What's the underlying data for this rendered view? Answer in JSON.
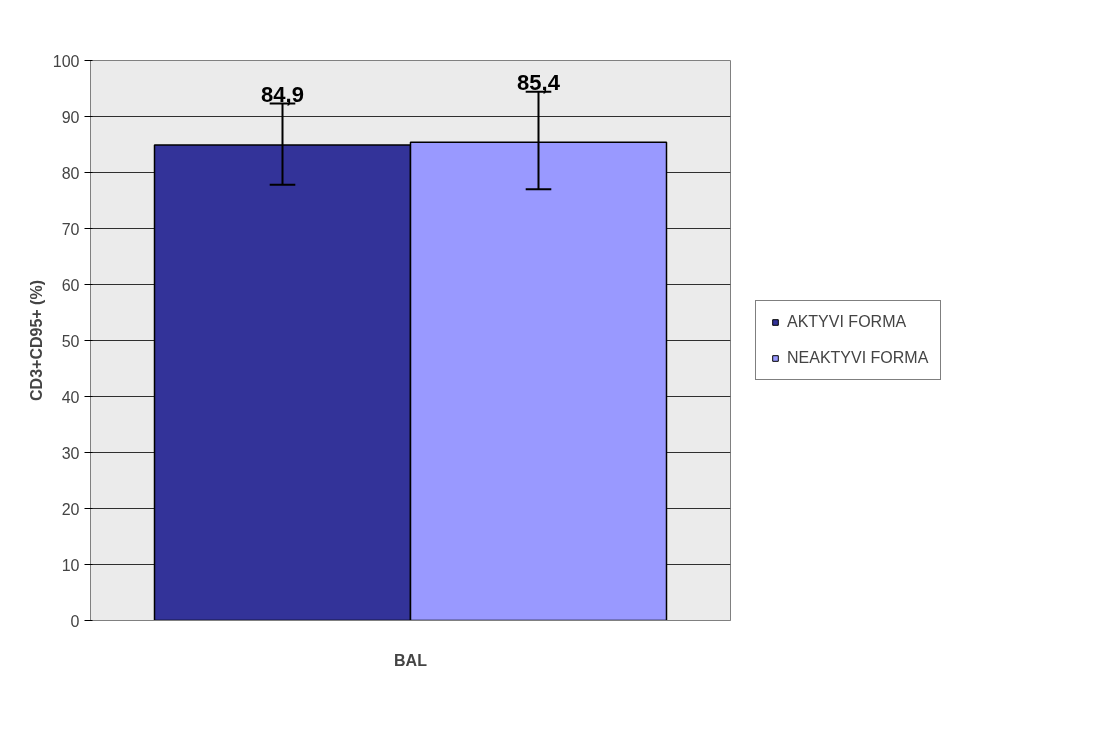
{
  "chart_data": {
    "type": "bar",
    "ylabel": "CD3+CD95+ (%)",
    "categories": [
      "BAL"
    ],
    "series": [
      {
        "name": "AKTYVI FORMA",
        "color": "#333399",
        "values": [
          84.9
        ],
        "errors": [
          [
            77.8,
            92.3
          ]
        ],
        "value_labels": [
          "84,9"
        ]
      },
      {
        "name": "NEAKTYVI FORMA",
        "color": "#9999ff",
        "values": [
          85.4
        ],
        "errors": [
          [
            77.0,
            94.4
          ]
        ],
        "value_labels": [
          "85,4"
        ]
      }
    ],
    "ylim": [
      0,
      100
    ],
    "yticks": [
      0,
      10,
      20,
      30,
      40,
      50,
      60,
      70,
      80,
      90,
      100
    ],
    "grid": "y",
    "legend": "right"
  }
}
